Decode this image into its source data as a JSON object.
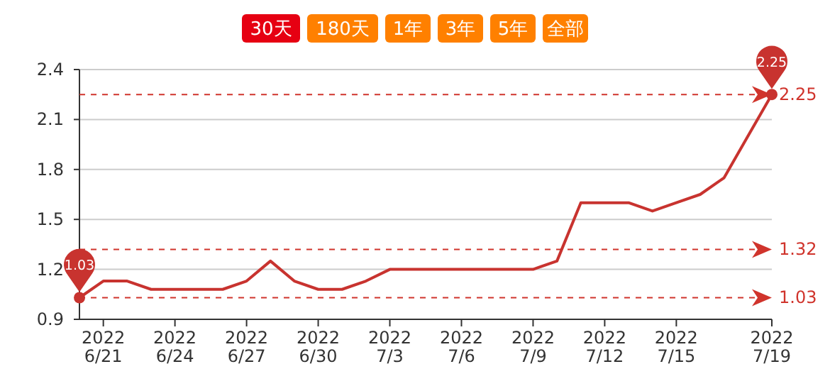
{
  "chart_data": {
    "type": "line",
    "color": "#c8332f",
    "line_style": "solid",
    "marker": "none",
    "grid": "y",
    "x": [
      "2022-06-20",
      "2022-06-21",
      "2022-06-22",
      "2022-06-23",
      "2022-06-24",
      "2022-06-25",
      "2022-06-26",
      "2022-06-27",
      "2022-06-28",
      "2022-06-29",
      "2022-06-30",
      "2022-07-01",
      "2022-07-02",
      "2022-07-03",
      "2022-07-04",
      "2022-07-05",
      "2022-07-06",
      "2022-07-07",
      "2022-07-08",
      "2022-07-09",
      "2022-07-10",
      "2022-07-11",
      "2022-07-12",
      "2022-07-13",
      "2022-07-14",
      "2022-07-15",
      "2022-07-16",
      "2022-07-17",
      "2022-07-18",
      "2022-07-19"
    ],
    "values": [
      1.03,
      1.13,
      1.13,
      1.08,
      1.08,
      1.08,
      1.08,
      1.13,
      1.25,
      1.13,
      1.08,
      1.08,
      1.13,
      1.2,
      1.2,
      1.2,
      1.2,
      1.2,
      1.2,
      1.2,
      1.25,
      1.6,
      1.6,
      1.6,
      1.55,
      1.6,
      1.65,
      1.75,
      2.0,
      2.25
    ],
    "xlim": [
      "2022-06-20",
      "2022-07-19"
    ],
    "xticks": [
      {
        "value": "2022-06-21",
        "label": "2022\n6/21"
      },
      {
        "value": "2022-06-24",
        "label": "2022\n6/24"
      },
      {
        "value": "2022-06-27",
        "label": "2022\n6/27"
      },
      {
        "value": "2022-06-30",
        "label": "2022\n6/30"
      },
      {
        "value": "2022-07-03",
        "label": "2022\n7/3"
      },
      {
        "value": "2022-07-06",
        "label": "2022\n7/6"
      },
      {
        "value": "2022-07-09",
        "label": "2022\n7/9"
      },
      {
        "value": "2022-07-12",
        "label": "2022\n7/12"
      },
      {
        "value": "2022-07-15",
        "label": "2022\n7/15"
      },
      {
        "value": "2022-07-19",
        "label": "2022\n7/19"
      }
    ],
    "ylim": [
      0.9,
      2.4
    ],
    "yticks": [
      0.9,
      1.2,
      1.5,
      1.8,
      2.1,
      2.4
    ],
    "ref_lines": [
      {
        "axis": "y",
        "value": 2.25,
        "label": "2.25",
        "color": "#d0342c",
        "line_style": "dashed"
      },
      {
        "axis": "y",
        "value": 1.32,
        "label": "1.32",
        "color": "#d0342c",
        "line_style": "dashed"
      },
      {
        "axis": "y",
        "value": 1.03,
        "label": "1.03",
        "color": "#d0342c",
        "line_style": "dashed"
      }
    ],
    "annotations": [
      "30天",
      "180天",
      "1年",
      "3年",
      "5年",
      "全部",
      {
        "text": "1.03",
        "x": "2022-06-20",
        "y": 1.03
      },
      {
        "text": "2.25",
        "x": "2022-07-19",
        "y": 2.25
      }
    ]
  }
}
